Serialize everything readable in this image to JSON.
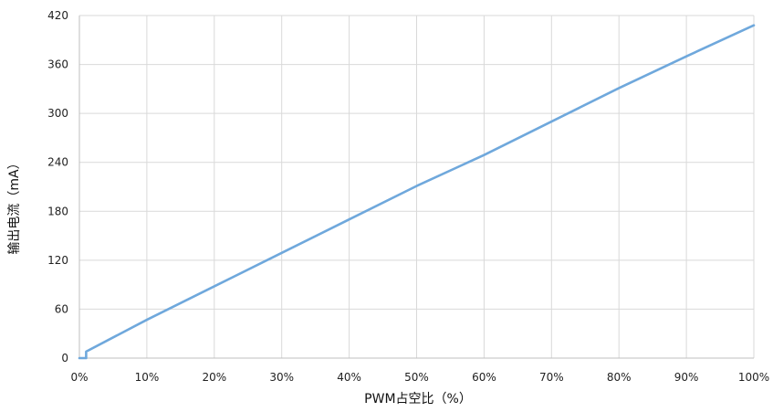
{
  "chart_data": {
    "type": "line",
    "title": "",
    "xlabel": "PWM占空比（%）",
    "ylabel": "输出电流（mA）",
    "x_ticks": [
      "0%",
      "10%",
      "20%",
      "30%",
      "40%",
      "50%",
      "60%",
      "70%",
      "80%",
      "90%",
      "100%"
    ],
    "y_ticks": [
      "0",
      "60",
      "120",
      "180",
      "240",
      "300",
      "360",
      "420"
    ],
    "xlim": [
      0,
      100
    ],
    "ylim": [
      0,
      420
    ],
    "grid": true,
    "series": [
      {
        "color": "#6fa8dc",
        "x": [
          0,
          1,
          1,
          10,
          20,
          30,
          40,
          50,
          60,
          70,
          80,
          90,
          100
        ],
        "y": [
          0,
          0,
          8,
          47,
          88,
          129,
          170,
          211,
          249,
          290,
          331,
          370,
          408
        ]
      }
    ]
  }
}
